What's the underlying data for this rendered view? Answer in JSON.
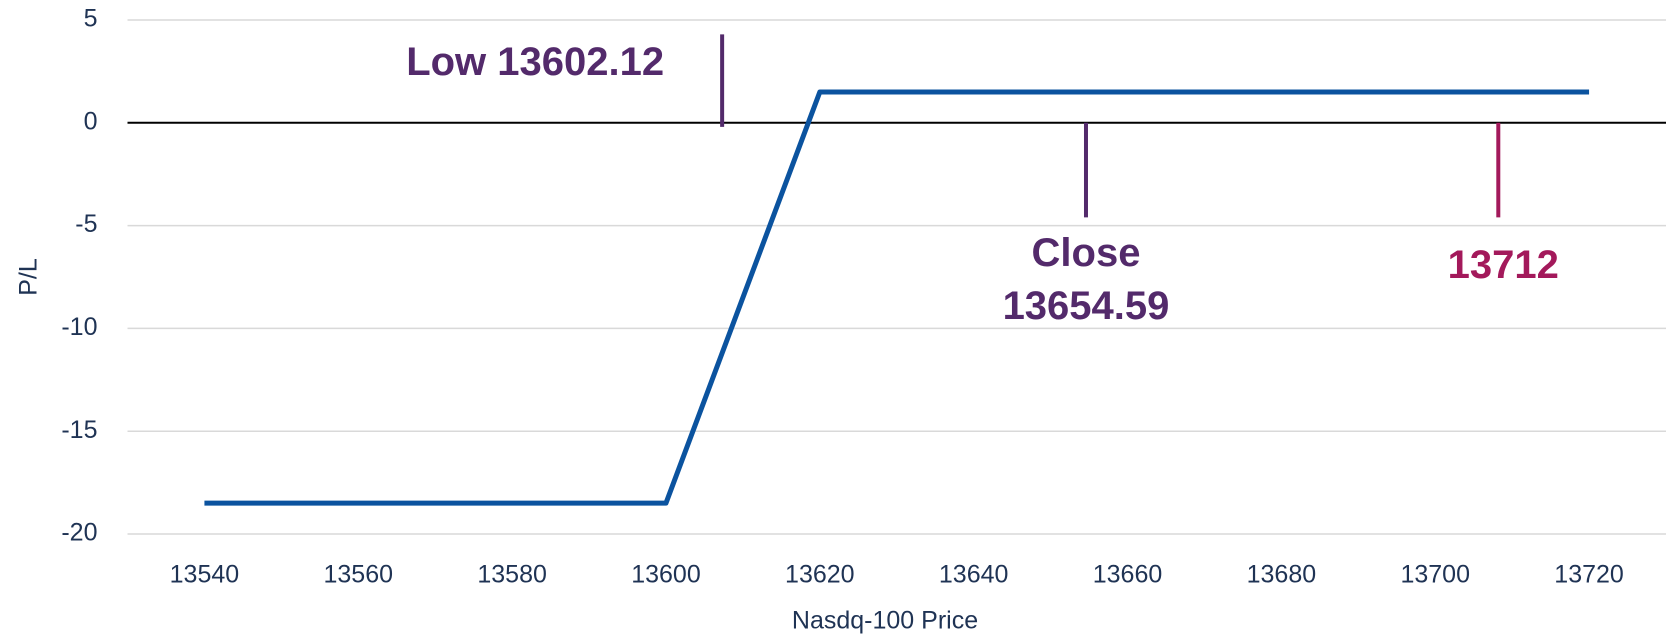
{
  "chart_data": {
    "type": "line",
    "x_label": "Nasdq-100 Price",
    "y_label": "P/L",
    "x": [
      13540,
      13600,
      13620,
      13720
    ],
    "series": [
      {
        "name": "P/L",
        "color": "#0b539f",
        "values": [
          -18.5,
          -18.5,
          1.5,
          1.5
        ]
      }
    ],
    "xlim": [
      13530,
      13730
    ],
    "ylim": [
      -20,
      5
    ],
    "xticks": [
      13540,
      13560,
      13580,
      13600,
      13620,
      13640,
      13660,
      13680,
      13700,
      13720
    ],
    "yticks": [
      -20,
      -15,
      -10,
      -5,
      0,
      5
    ],
    "grid": true,
    "annotations": [
      {
        "lines": [
          "Low 13602.12"
        ],
        "x": 13607.3,
        "y": [
          4.3,
          -0.2
        ],
        "color": "#532a6b"
      },
      {
        "lines": [
          "Close",
          "13654.59"
        ],
        "x": 13654.6,
        "y": [
          0,
          -4.6
        ],
        "color": "#532a6b"
      },
      {
        "lines": [
          "13712"
        ],
        "x": 13708.2,
        "y": [
          0,
          -4.6
        ],
        "color": "#a3195b"
      }
    ]
  }
}
